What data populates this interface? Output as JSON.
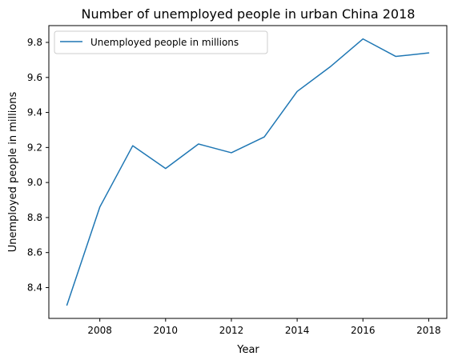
{
  "chart_data": {
    "type": "line",
    "title": "Number of unemployed people in urban China 2018",
    "xlabel": "Year",
    "ylabel": "Unemployed people in millions",
    "x": [
      2007,
      2008,
      2009,
      2010,
      2011,
      2012,
      2013,
      2014,
      2015,
      2016,
      2017,
      2018
    ],
    "series": [
      {
        "name": "Unemployed people in millions",
        "values": [
          8.3,
          8.86,
          9.21,
          9.08,
          9.22,
          9.17,
          9.26,
          9.52,
          9.66,
          9.82,
          9.72,
          9.74
        ],
        "color": "#1f77b4"
      }
    ],
    "xlim": [
      2006.45,
      2018.55
    ],
    "ylim": [
      8.224,
      9.896
    ],
    "xticks": [
      2008,
      2010,
      2012,
      2014,
      2016,
      2018
    ],
    "yticks": [
      8.4,
      8.6,
      8.8,
      9.0,
      9.2,
      9.4,
      9.6,
      9.8
    ],
    "xtick_labels": [
      "2008",
      "2010",
      "2012",
      "2014",
      "2016",
      "2018"
    ],
    "ytick_labels": [
      "8.4",
      "8.6",
      "8.8",
      "9.0",
      "9.2",
      "9.4",
      "9.6",
      "9.8"
    ],
    "grid": false,
    "legend_position": "top-left"
  }
}
